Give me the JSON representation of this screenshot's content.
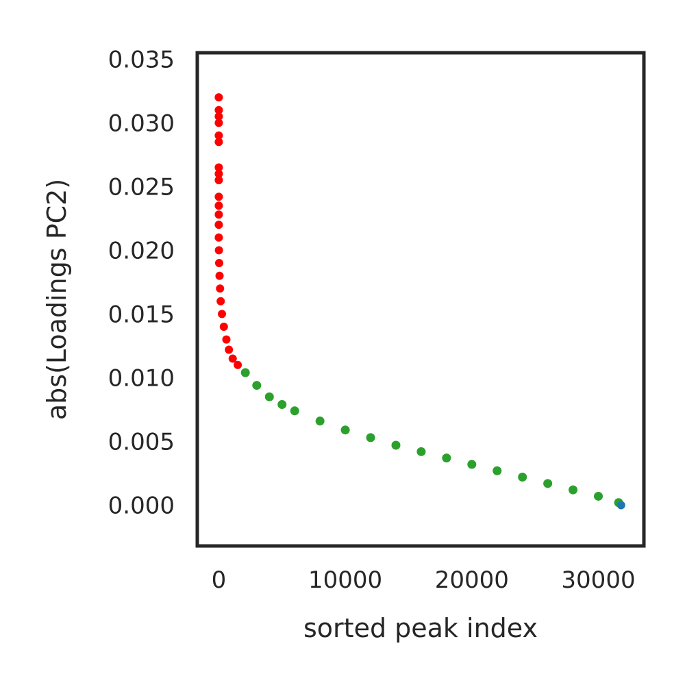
{
  "chart_data": {
    "type": "scatter",
    "title": "",
    "xlabel": "sorted peak index",
    "ylabel": "abs(Loadings PC2)",
    "xlim": [
      -1700,
      33600
    ],
    "ylim": [
      -0.0032,
      0.0355
    ],
    "xticks": [
      0,
      10000,
      20000,
      30000
    ],
    "xtick_labels": [
      "0",
      "10000",
      "20000",
      "30000"
    ],
    "yticks": [
      0.0,
      0.005,
      0.01,
      0.015,
      0.02,
      0.025,
      0.03,
      0.035
    ],
    "ytick_labels": [
      "0.000",
      "0.005",
      "0.010",
      "0.015",
      "0.020",
      "0.025",
      "0.030",
      "0.035"
    ],
    "grid": false,
    "legend": "none",
    "series": [
      {
        "color": "#ff0000",
        "points": [
          [
            0,
            0.032
          ],
          [
            0,
            0.031
          ],
          [
            0,
            0.0305
          ],
          [
            0,
            0.03
          ],
          [
            0,
            0.029
          ],
          [
            0,
            0.0285
          ],
          [
            0,
            0.0265
          ],
          [
            0,
            0.026
          ],
          [
            0,
            0.0255
          ],
          [
            0,
            0.0242
          ],
          [
            0,
            0.0235
          ],
          [
            0,
            0.0228
          ],
          [
            0,
            0.022
          ],
          [
            0,
            0.021
          ],
          [
            10,
            0.02
          ],
          [
            30,
            0.019
          ],
          [
            60,
            0.018
          ],
          [
            100,
            0.017
          ],
          [
            150,
            0.016
          ],
          [
            250,
            0.015
          ],
          [
            400,
            0.014
          ],
          [
            600,
            0.013
          ],
          [
            800,
            0.0122
          ],
          [
            1100,
            0.0115
          ],
          [
            1500,
            0.011
          ],
          [
            2100,
            0.0104
          ]
        ]
      },
      {
        "color": "#2ca02c",
        "points": [
          [
            2100,
            0.0104
          ],
          [
            3000,
            0.0094
          ],
          [
            4000,
            0.0085
          ],
          [
            5000,
            0.0079
          ],
          [
            6000,
            0.0074
          ],
          [
            8000,
            0.0066
          ],
          [
            10000,
            0.0059
          ],
          [
            12000,
            0.0053
          ],
          [
            14000,
            0.0047
          ],
          [
            16000,
            0.0042
          ],
          [
            18000,
            0.0037
          ],
          [
            20000,
            0.0032
          ],
          [
            22000,
            0.0027
          ],
          [
            24000,
            0.0022
          ],
          [
            26000,
            0.0017
          ],
          [
            28000,
            0.0012
          ],
          [
            30000,
            0.0007
          ],
          [
            31600,
            0.0002
          ]
        ]
      },
      {
        "color": "#1f77b4",
        "points": [
          [
            31800,
            0.0
          ]
        ]
      }
    ]
  }
}
